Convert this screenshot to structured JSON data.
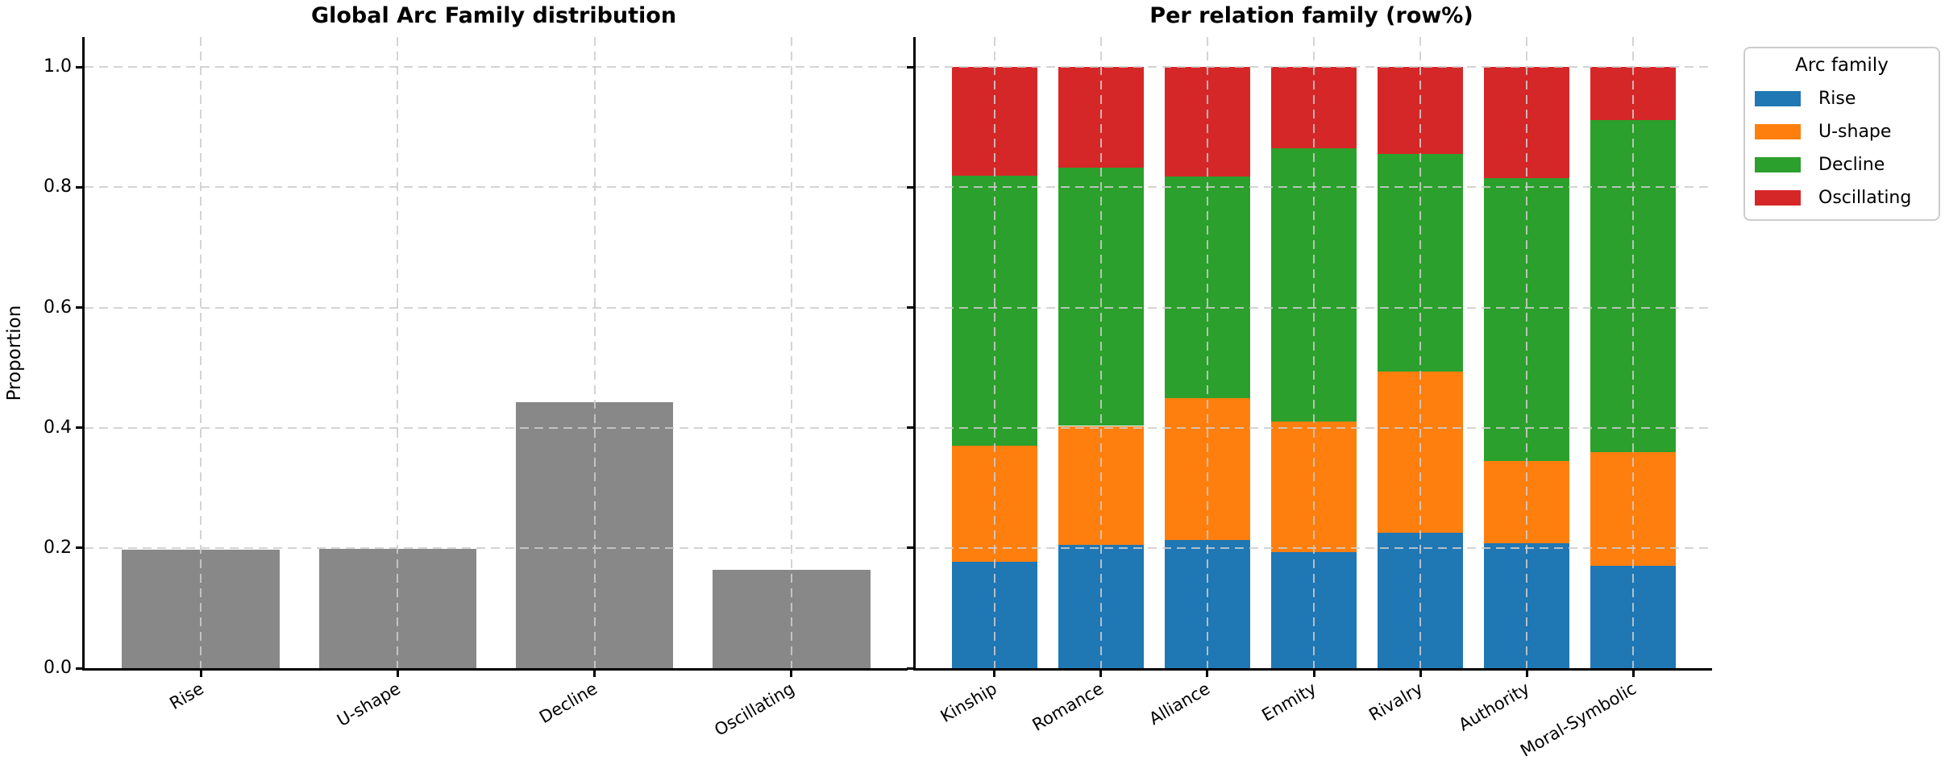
{
  "chart_data": [
    {
      "type": "bar",
      "title": "Global Arc Family distribution",
      "ylabel": "Proportion",
      "categories": [
        "Rise",
        "U-shape",
        "Decline",
        "Oscillating"
      ],
      "values": [
        0.197,
        0.198,
        0.442,
        0.163
      ],
      "bar_color": "#888888",
      "yticks": [
        0,
        0.2,
        0.4,
        0.6,
        0.8,
        1.0
      ],
      "ylim": [
        0,
        1.05
      ],
      "grid": "dashed",
      "show_ytick_labels": true,
      "xtick_rotation_deg": 30
    },
    {
      "type": "stacked_bar",
      "title": "Per relation family (row%)",
      "ylabel": "",
      "categories": [
        "Kinship",
        "Romance",
        "Alliance",
        "Enmity",
        "Rivalry",
        "Authority",
        "Moral-Symbolic"
      ],
      "series": [
        {
          "name": "Rise",
          "color": "#1f77b4",
          "values": [
            0.177,
            0.205,
            0.213,
            0.193,
            0.225,
            0.208,
            0.17
          ]
        },
        {
          "name": "U-shape",
          "color": "#ff7f0e",
          "values": [
            0.193,
            0.198,
            0.236,
            0.218,
            0.269,
            0.137,
            0.19
          ]
        },
        {
          "name": "Decline",
          "color": "#2ca02c",
          "values": [
            0.449,
            0.43,
            0.369,
            0.454,
            0.361,
            0.471,
            0.552
          ]
        },
        {
          "name": "Oscillating",
          "color": "#d62728",
          "values": [
            0.181,
            0.167,
            0.182,
            0.135,
            0.145,
            0.184,
            0.088
          ]
        }
      ],
      "yticks": [
        0,
        0.2,
        0.4,
        0.6,
        0.8,
        1.0
      ],
      "ylim": [
        0,
        1.05
      ],
      "grid": "dashed",
      "show_ytick_labels": false,
      "xtick_rotation_deg": 30,
      "legend": {
        "title": "Arc family",
        "position": "upper-right-outside",
        "entries": [
          {
            "label": "Rise",
            "color": "#1f77b4"
          },
          {
            "label": "U-shape",
            "color": "#ff7f0e"
          },
          {
            "label": "Decline",
            "color": "#2ca02c"
          },
          {
            "label": "Oscillating",
            "color": "#d62728"
          }
        ]
      }
    }
  ]
}
